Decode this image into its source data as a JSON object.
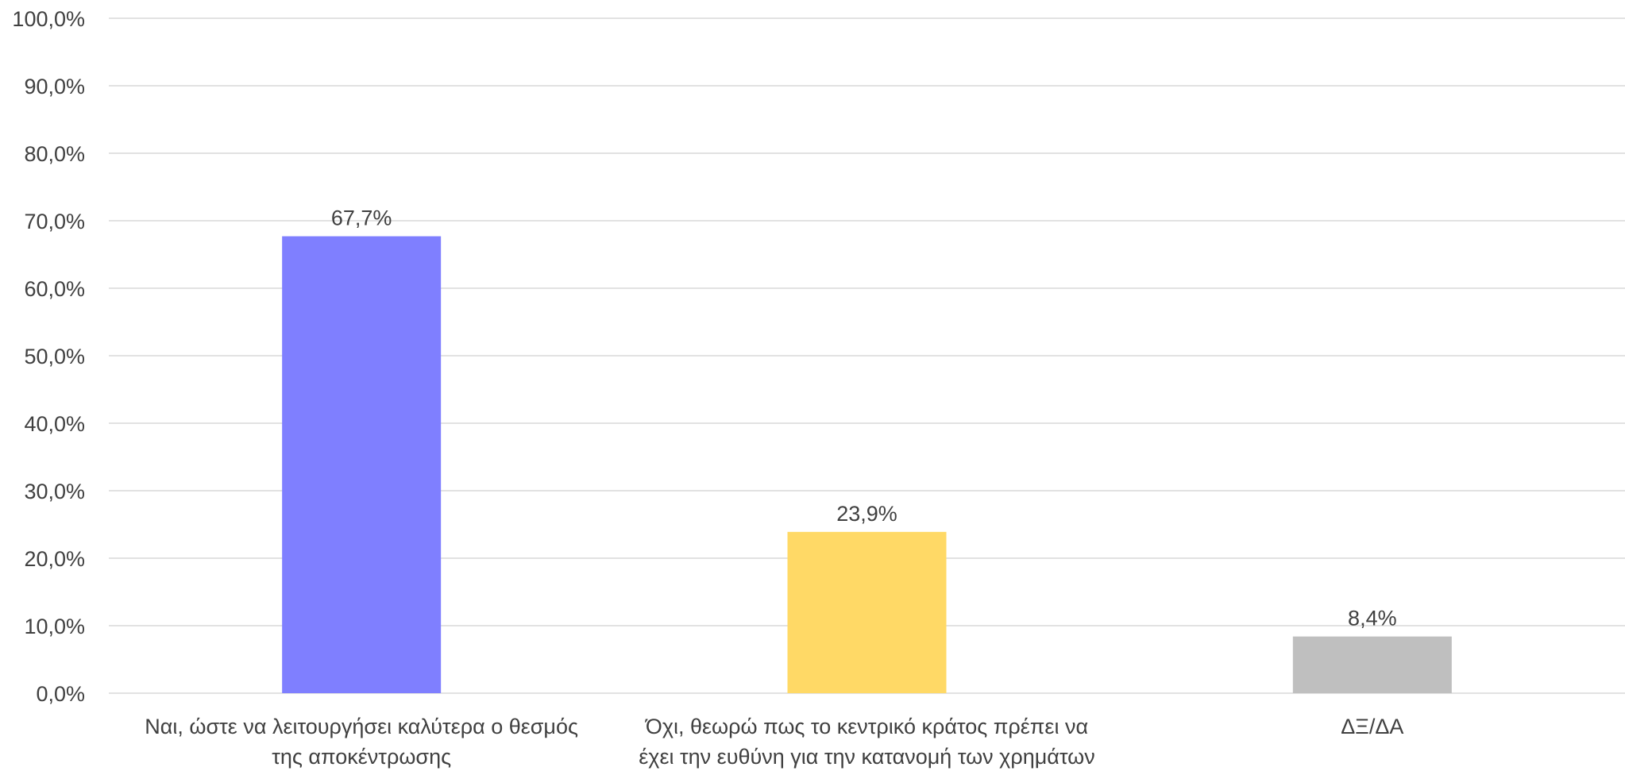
{
  "chart_data": {
    "type": "bar",
    "title": "",
    "xlabel": "",
    "ylabel": "",
    "categories": [
      [
        "Ναι, ώστε να λειτουργήσει καλύτερα ο θεσμός",
        "της αποκέντρωσης"
      ],
      [
        "Όχι, θεωρώ πως το κεντρικό κράτος πρέπει να",
        "έχει την ευθύνη για την κατανομή των χρημάτων"
      ],
      [
        "ΔΞ/ΔΑ"
      ]
    ],
    "values": [
      67.7,
      23.9,
      8.4
    ],
    "data_labels": [
      "67,7%",
      "23,9%",
      "8,4%"
    ],
    "colors": [
      "#7f7fff",
      "#ffd966",
      "#bfbfbf"
    ],
    "ylim": [
      0,
      100
    ],
    "yticks": [
      0,
      10,
      20,
      30,
      40,
      50,
      60,
      70,
      80,
      90,
      100
    ],
    "ytick_labels": [
      "0,0%",
      "10,0%",
      "20,0%",
      "30,0%",
      "40,0%",
      "50,0%",
      "60,0%",
      "70,0%",
      "80,0%",
      "90,0%",
      "100,0%"
    ],
    "grid": true,
    "legend": "none"
  }
}
